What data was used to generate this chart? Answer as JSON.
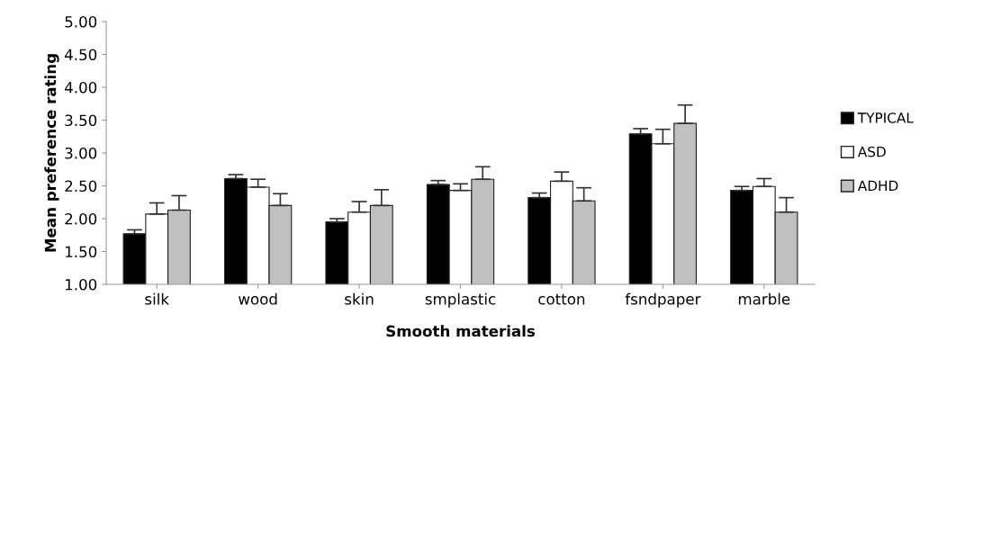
{
  "chart_data": {
    "type": "bar",
    "xlabel": "Smooth materials",
    "ylabel": "Mean preference rating",
    "categories": [
      "silk",
      "wood",
      "skin",
      "smplastic",
      "cotton",
      "fsndpaper",
      "marble"
    ],
    "series": [
      {
        "name": "TYPICAL",
        "color": "#000000",
        "values": [
          1.77,
          2.61,
          1.95,
          2.52,
          2.32,
          3.29,
          2.43
        ],
        "errors": [
          [
            1.77,
            1.83
          ],
          [
            2.61,
            2.67
          ],
          [
            1.95,
            2.0
          ],
          [
            2.52,
            2.58
          ],
          [
            2.32,
            2.39
          ],
          [
            3.29,
            3.37
          ],
          [
            2.43,
            2.49
          ]
        ]
      },
      {
        "name": "ASD",
        "color": "#ffffff",
        "values": [
          2.07,
          2.48,
          2.1,
          2.43,
          2.57,
          3.14,
          2.49
        ],
        "errors": [
          [
            2.07,
            2.24
          ],
          [
            2.48,
            2.6
          ],
          [
            2.1,
            2.26
          ],
          [
            2.43,
            2.53
          ],
          [
            2.57,
            2.71
          ],
          [
            3.14,
            3.36
          ],
          [
            2.49,
            2.61
          ]
        ]
      },
      {
        "name": "ADHD",
        "color": "#c0c0c0",
        "values": [
          2.13,
          2.2,
          2.2,
          2.6,
          2.27,
          3.45,
          2.1
        ],
        "errors": [
          [
            2.13,
            2.35
          ],
          [
            2.2,
            2.38
          ],
          [
            2.2,
            2.44
          ],
          [
            2.6,
            2.79
          ],
          [
            2.27,
            2.47
          ],
          [
            3.45,
            3.73
          ],
          [
            2.1,
            2.32
          ]
        ]
      }
    ],
    "ylim": [
      1.0,
      5.0
    ],
    "yticks": [
      {
        "value": 1,
        "label": "1.00"
      },
      {
        "value": 1.5,
        "label": "1.50"
      },
      {
        "value": 2,
        "label": "2.00"
      },
      {
        "value": 2.5,
        "label": "2.50"
      },
      {
        "value": 3,
        "label": "3.00"
      },
      {
        "value": 3.5,
        "label": "3.50"
      },
      {
        "value": 4,
        "label": "4.00"
      },
      {
        "value": 4.5,
        "label": "4.50"
      },
      {
        "value": 5,
        "label": "5.00"
      }
    ],
    "grid": false,
    "legend": "right"
  }
}
